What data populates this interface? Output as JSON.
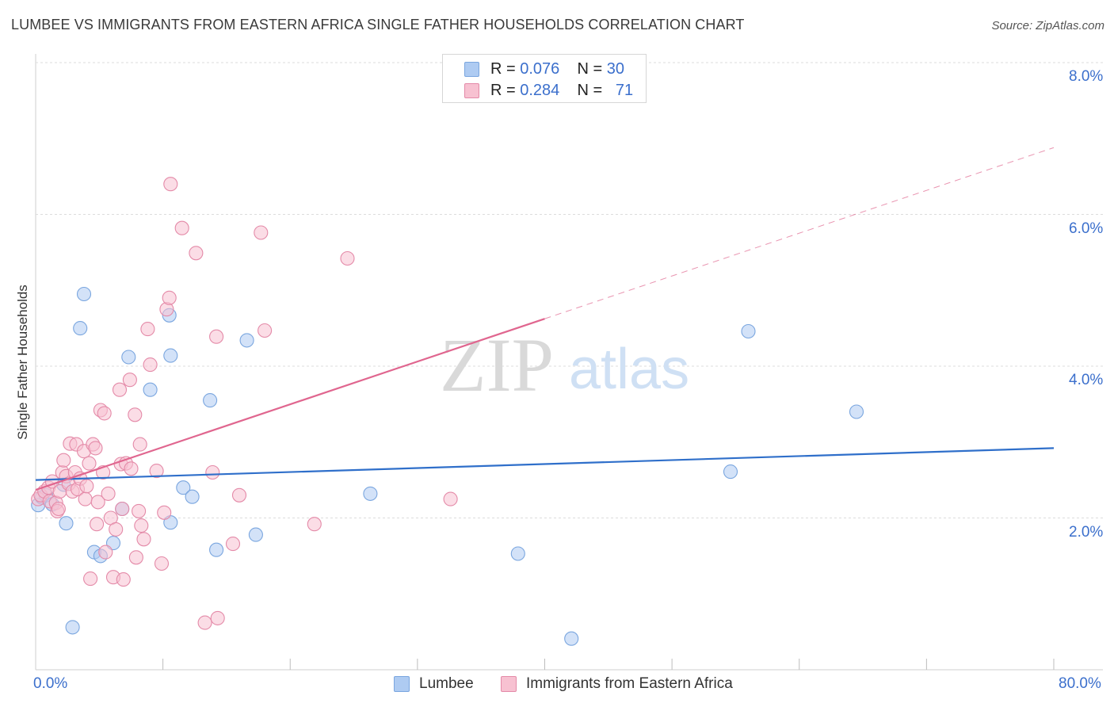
{
  "title": "LUMBEE VS IMMIGRANTS FROM EASTERN AFRICA SINGLE FATHER HOUSEHOLDS CORRELATION CHART",
  "source": "Source: ZipAtlas.com",
  "watermark": {
    "zip": "ZIP",
    "atlas": "atlas"
  },
  "legend": {
    "rows": [
      {
        "r_label": "R =",
        "r_value": "0.076",
        "n_label": "N =",
        "n_value": "30",
        "color": "#aecbf2",
        "border": "#7aa6df"
      },
      {
        "r_label": "R =",
        "r_value": "0.284",
        "n_label": "N =",
        "n_value": "71",
        "color": "#f7c1d1",
        "border": "#e48aa8"
      }
    ]
  },
  "bottom_legend": {
    "items": [
      {
        "label": "Lumbee",
        "color": "#aecbf2",
        "border": "#7aa6df"
      },
      {
        "label": "Immigrants from Eastern Africa",
        "color": "#f7c1d1",
        "border": "#e48aa8"
      }
    ]
  },
  "axes": {
    "x_min_label": "0.0%",
    "x_max_label": "80.0%",
    "y_ticks": [
      "8.0%",
      "6.0%",
      "4.0%",
      "2.0%"
    ],
    "y_title": "Single Father Households"
  },
  "chart_data": {
    "type": "scatter",
    "title": "LUMBEE VS IMMIGRANTS FROM EASTERN AFRICA SINGLE FATHER HOUSEHOLDS CORRELATION CHART",
    "xlabel": "",
    "ylabel": "Single Father Households",
    "xlim": [
      0,
      80
    ],
    "ylim": [
      0,
      8.2
    ],
    "y_gridlines": [
      2,
      4,
      6,
      8
    ],
    "series": [
      {
        "name": "Lumbee",
        "color": "#aecbf2",
        "stroke": "#7aa6df",
        "trend_color": "#2f6fca",
        "trend": {
          "x0": 0,
          "y0": 2.5,
          "x1": 80,
          "y1": 2.92,
          "solid_until": 80
        },
        "points": [
          [
            0.2,
            2.17
          ],
          [
            0.5,
            2.27
          ],
          [
            0.8,
            2.3
          ],
          [
            1.3,
            2.18
          ],
          [
            2.2,
            2.44
          ],
          [
            2.4,
            1.93
          ],
          [
            2.9,
            0.56
          ],
          [
            3.5,
            4.5
          ],
          [
            3.8,
            4.95
          ],
          [
            4.6,
            1.55
          ],
          [
            5.1,
            1.5
          ],
          [
            6.1,
            1.67
          ],
          [
            6.8,
            2.12
          ],
          [
            7.3,
            4.12
          ],
          [
            9.0,
            3.69
          ],
          [
            10.5,
            4.67
          ],
          [
            10.6,
            4.14
          ],
          [
            10.6,
            1.94
          ],
          [
            11.6,
            2.4
          ],
          [
            12.3,
            2.28
          ],
          [
            13.7,
            3.55
          ],
          [
            14.2,
            1.58
          ],
          [
            16.6,
            4.34
          ],
          [
            17.3,
            1.78
          ],
          [
            26.3,
            2.32
          ],
          [
            37.9,
            1.53
          ],
          [
            42.1,
            0.41
          ],
          [
            54.6,
            2.61
          ],
          [
            56.0,
            4.46
          ],
          [
            64.5,
            3.4
          ]
        ]
      },
      {
        "name": "Immigrants from Eastern Africa",
        "color": "#f7c1d1",
        "stroke": "#e48aa8",
        "trend_color": "#e0668f",
        "trend": {
          "x0": 0,
          "y0": 2.37,
          "x1": 80,
          "y1": 6.88,
          "solid_until": 40
        },
        "points": [
          [
            0.2,
            2.25
          ],
          [
            0.4,
            2.3
          ],
          [
            0.7,
            2.35
          ],
          [
            1.0,
            2.4
          ],
          [
            1.1,
            2.22
          ],
          [
            1.3,
            2.48
          ],
          [
            1.6,
            2.2
          ],
          [
            1.7,
            2.09
          ],
          [
            1.8,
            2.12
          ],
          [
            1.9,
            2.35
          ],
          [
            2.1,
            2.6
          ],
          [
            2.2,
            2.76
          ],
          [
            2.4,
            2.55
          ],
          [
            2.6,
            2.45
          ],
          [
            2.7,
            2.98
          ],
          [
            2.9,
            2.35
          ],
          [
            3.1,
            2.6
          ],
          [
            3.2,
            2.97
          ],
          [
            3.3,
            2.38
          ],
          [
            3.5,
            2.52
          ],
          [
            3.8,
            2.88
          ],
          [
            3.9,
            2.25
          ],
          [
            4.0,
            2.42
          ],
          [
            4.2,
            2.72
          ],
          [
            4.3,
            1.2
          ],
          [
            4.5,
            2.97
          ],
          [
            4.7,
            2.92
          ],
          [
            4.8,
            1.92
          ],
          [
            4.9,
            2.21
          ],
          [
            5.1,
            3.42
          ],
          [
            5.3,
            2.6
          ],
          [
            5.4,
            3.38
          ],
          [
            5.5,
            1.55
          ],
          [
            5.7,
            2.32
          ],
          [
            5.9,
            2.0
          ],
          [
            6.1,
            1.22
          ],
          [
            6.3,
            1.85
          ],
          [
            6.6,
            3.69
          ],
          [
            6.7,
            2.71
          ],
          [
            6.8,
            2.12
          ],
          [
            6.9,
            1.19
          ],
          [
            7.1,
            2.72
          ],
          [
            7.4,
            3.82
          ],
          [
            7.5,
            2.65
          ],
          [
            7.8,
            3.36
          ],
          [
            7.9,
            1.48
          ],
          [
            8.1,
            2.09
          ],
          [
            8.2,
            2.97
          ],
          [
            8.3,
            1.9
          ],
          [
            8.5,
            1.72
          ],
          [
            8.8,
            4.49
          ],
          [
            9.0,
            4.02
          ],
          [
            9.5,
            2.62
          ],
          [
            9.9,
            1.4
          ],
          [
            10.1,
            2.07
          ],
          [
            10.3,
            4.75
          ],
          [
            10.5,
            4.9
          ],
          [
            10.6,
            6.4
          ],
          [
            11.5,
            5.82
          ],
          [
            12.6,
            5.49
          ],
          [
            13.3,
            0.62
          ],
          [
            13.9,
            2.6
          ],
          [
            14.2,
            4.39
          ],
          [
            14.3,
            0.68
          ],
          [
            15.5,
            1.66
          ],
          [
            17.7,
            5.76
          ],
          [
            18.0,
            4.47
          ],
          [
            21.9,
            1.92
          ],
          [
            24.5,
            5.42
          ],
          [
            32.6,
            2.25
          ],
          [
            16.0,
            2.3
          ]
        ]
      }
    ]
  }
}
